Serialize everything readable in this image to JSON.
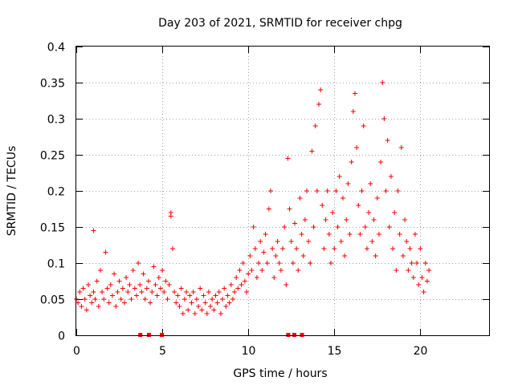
{
  "chart_data": {
    "type": "scatter",
    "title": "Day 203 of 2021, SRMTID for receiver chpg",
    "xlabel": "GPS time / hours",
    "ylabel": "SRMTID / TECUs",
    "xlim": [
      0,
      24
    ],
    "ylim": [
      0,
      0.4
    ],
    "grid": true,
    "x_ticks": [
      0,
      5,
      10,
      15,
      20
    ],
    "x_tick_labels": [
      "0",
      "5",
      "10",
      "15",
      "20"
    ],
    "y_ticks": [
      0,
      0.05,
      0.1,
      0.15,
      0.2,
      0.25,
      0.3,
      0.35,
      0.4
    ],
    "y_tick_labels": [
      "0",
      "0.05",
      "0.1",
      "0.15",
      "0.2",
      "0.25",
      "0.3",
      "0.35",
      "0.4"
    ],
    "marker": "plus",
    "color": "#ff0000",
    "series": [
      {
        "name": "SRMTID",
        "points": [
          [
            0.0,
            0.05
          ],
          [
            0.1,
            0.045
          ],
          [
            0.2,
            0.06
          ],
          [
            0.3,
            0.04
          ],
          [
            0.4,
            0.065
          ],
          [
            0.5,
            0.05
          ],
          [
            0.6,
            0.035
          ],
          [
            0.7,
            0.07
          ],
          [
            0.8,
            0.055
          ],
          [
            0.9,
            0.045
          ],
          [
            1.0,
            0.145
          ],
          [
            1.0,
            0.06
          ],
          [
            1.1,
            0.05
          ],
          [
            1.2,
            0.075
          ],
          [
            1.3,
            0.04
          ],
          [
            1.4,
            0.09
          ],
          [
            1.5,
            0.06
          ],
          [
            1.6,
            0.05
          ],
          [
            1.7,
            0.115
          ],
          [
            1.8,
            0.065
          ],
          [
            1.9,
            0.045
          ],
          [
            2.0,
            0.07
          ],
          [
            2.1,
            0.055
          ],
          [
            2.2,
            0.085
          ],
          [
            2.3,
            0.04
          ],
          [
            2.4,
            0.06
          ],
          [
            2.5,
            0.075
          ],
          [
            2.6,
            0.05
          ],
          [
            2.7,
            0.065
          ],
          [
            2.8,
            0.045
          ],
          [
            2.9,
            0.08
          ],
          [
            3.0,
            0.06
          ],
          [
            3.1,
            0.07
          ],
          [
            3.2,
            0.05
          ],
          [
            3.3,
            0.09
          ],
          [
            3.4,
            0.065
          ],
          [
            3.5,
            0.055
          ],
          [
            3.6,
            0.1
          ],
          [
            3.7,
            0.07
          ],
          [
            3.8,
            0.06
          ],
          [
            3.9,
            0.085
          ],
          [
            4.0,
            0.05
          ],
          [
            4.1,
            0.065
          ],
          [
            4.2,
            0.075
          ],
          [
            4.3,
            0.045
          ],
          [
            4.4,
            0.06
          ],
          [
            4.5,
            0.095
          ],
          [
            4.6,
            0.07
          ],
          [
            4.7,
            0.055
          ],
          [
            4.8,
            0.08
          ],
          [
            4.9,
            0.065
          ],
          [
            5.0,
            0.09
          ],
          [
            5.1,
            0.06
          ],
          [
            5.2,
            0.075
          ],
          [
            5.3,
            0.05
          ],
          [
            5.4,
            0.07
          ],
          [
            5.5,
            0.17
          ],
          [
            5.5,
            0.165
          ],
          [
            5.6,
            0.12
          ],
          [
            5.7,
            0.06
          ],
          [
            5.8,
            0.045
          ],
          [
            5.9,
            0.055
          ],
          [
            6.0,
            0.04
          ],
          [
            6.1,
            0.065
          ],
          [
            6.2,
            0.03
          ],
          [
            6.3,
            0.05
          ],
          [
            6.4,
            0.06
          ],
          [
            6.5,
            0.035
          ],
          [
            6.6,
            0.055
          ],
          [
            6.7,
            0.045
          ],
          [
            6.8,
            0.06
          ],
          [
            6.9,
            0.03
          ],
          [
            7.0,
            0.05
          ],
          [
            7.1,
            0.04
          ],
          [
            7.2,
            0.065
          ],
          [
            7.3,
            0.035
          ],
          [
            7.4,
            0.055
          ],
          [
            7.5,
            0.045
          ],
          [
            7.6,
            0.03
          ],
          [
            7.7,
            0.06
          ],
          [
            7.8,
            0.04
          ],
          [
            7.9,
            0.05
          ],
          [
            8.0,
            0.035
          ],
          [
            8.1,
            0.055
          ],
          [
            8.2,
            0.045
          ],
          [
            8.3,
            0.06
          ],
          [
            8.4,
            0.03
          ],
          [
            8.5,
            0.05
          ],
          [
            8.6,
            0.065
          ],
          [
            8.7,
            0.04
          ],
          [
            8.8,
            0.055
          ],
          [
            8.9,
            0.045
          ],
          [
            9.0,
            0.07
          ],
          [
            9.1,
            0.05
          ],
          [
            9.2,
            0.06
          ],
          [
            9.3,
            0.08
          ],
          [
            9.4,
            0.065
          ],
          [
            9.5,
            0.09
          ],
          [
            9.6,
            0.07
          ],
          [
            9.7,
            0.1
          ],
          [
            9.8,
            0.075
          ],
          [
            9.9,
            0.06
          ],
          [
            10.0,
            0.085
          ],
          [
            10.1,
            0.11
          ],
          [
            10.2,
            0.09
          ],
          [
            10.3,
            0.15
          ],
          [
            10.4,
            0.12
          ],
          [
            10.5,
            0.08
          ],
          [
            10.6,
            0.1
          ],
          [
            10.7,
            0.13
          ],
          [
            10.8,
            0.09
          ],
          [
            10.9,
            0.115
          ],
          [
            11.0,
            0.14
          ],
          [
            11.1,
            0.1
          ],
          [
            11.2,
            0.175
          ],
          [
            11.3,
            0.2
          ],
          [
            11.4,
            0.12
          ],
          [
            11.5,
            0.08
          ],
          [
            11.6,
            0.11
          ],
          [
            11.7,
            0.13
          ],
          [
            11.8,
            0.1
          ],
          [
            11.9,
            0.09
          ],
          [
            12.0,
            0.12
          ],
          [
            12.1,
            0.15
          ],
          [
            12.2,
            0.07
          ],
          [
            12.3,
            0.245
          ],
          [
            12.4,
            0.175
          ],
          [
            12.5,
            0.13
          ],
          [
            12.6,
            0.1
          ],
          [
            12.7,
            0.155
          ],
          [
            12.8,
            0.12
          ],
          [
            12.9,
            0.09
          ],
          [
            13.0,
            0.19
          ],
          [
            13.1,
            0.14
          ],
          [
            13.2,
            0.11
          ],
          [
            13.3,
            0.16
          ],
          [
            13.4,
            0.2
          ],
          [
            13.5,
            0.13
          ],
          [
            13.6,
            0.1
          ],
          [
            13.7,
            0.255
          ],
          [
            13.8,
            0.15
          ],
          [
            13.9,
            0.29
          ],
          [
            14.0,
            0.2
          ],
          [
            14.1,
            0.32
          ],
          [
            14.2,
            0.34
          ],
          [
            14.3,
            0.18
          ],
          [
            14.4,
            0.12
          ],
          [
            14.5,
            0.16
          ],
          [
            14.6,
            0.2
          ],
          [
            14.7,
            0.14
          ],
          [
            14.8,
            0.1
          ],
          [
            14.9,
            0.17
          ],
          [
            15.0,
            0.12
          ],
          [
            15.1,
            0.2
          ],
          [
            15.2,
            0.15
          ],
          [
            15.3,
            0.22
          ],
          [
            15.4,
            0.13
          ],
          [
            15.5,
            0.19
          ],
          [
            15.6,
            0.11
          ],
          [
            15.7,
            0.16
          ],
          [
            15.8,
            0.21
          ],
          [
            15.9,
            0.14
          ],
          [
            16.0,
            0.24
          ],
          [
            16.1,
            0.31
          ],
          [
            16.2,
            0.335
          ],
          [
            16.3,
            0.26
          ],
          [
            16.4,
            0.18
          ],
          [
            16.5,
            0.14
          ],
          [
            16.6,
            0.2
          ],
          [
            16.7,
            0.29
          ],
          [
            16.8,
            0.15
          ],
          [
            16.9,
            0.12
          ],
          [
            17.0,
            0.17
          ],
          [
            17.1,
            0.21
          ],
          [
            17.2,
            0.13
          ],
          [
            17.3,
            0.16
          ],
          [
            17.4,
            0.11
          ],
          [
            17.5,
            0.19
          ],
          [
            17.6,
            0.14
          ],
          [
            17.7,
            0.24
          ],
          [
            17.8,
            0.35
          ],
          [
            17.9,
            0.3
          ],
          [
            18.0,
            0.2
          ],
          [
            18.1,
            0.27
          ],
          [
            18.2,
            0.15
          ],
          [
            18.3,
            0.22
          ],
          [
            18.4,
            0.12
          ],
          [
            18.5,
            0.17
          ],
          [
            18.6,
            0.09
          ],
          [
            18.7,
            0.2
          ],
          [
            18.8,
            0.14
          ],
          [
            18.9,
            0.26
          ],
          [
            19.0,
            0.11
          ],
          [
            19.1,
            0.16
          ],
          [
            19.2,
            0.13
          ],
          [
            19.3,
            0.09
          ],
          [
            19.4,
            0.12
          ],
          [
            19.5,
            0.1
          ],
          [
            19.6,
            0.08
          ],
          [
            19.7,
            0.14
          ],
          [
            19.8,
            0.1
          ],
          [
            19.9,
            0.07
          ],
          [
            20.0,
            0.12
          ],
          [
            20.1,
            0.08
          ],
          [
            20.2,
            0.06
          ],
          [
            20.3,
            0.1
          ],
          [
            20.4,
            0.075
          ],
          [
            20.5,
            0.09
          ]
        ]
      }
    ],
    "gap_markers_x": [
      3.7,
      4.2,
      4.95,
      12.3,
      12.65,
      13.1
    ]
  }
}
